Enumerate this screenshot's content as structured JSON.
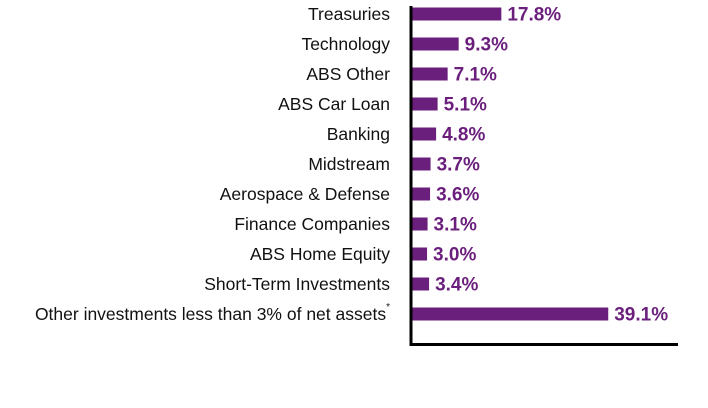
{
  "chart_data": {
    "type": "bar",
    "orientation": "horizontal",
    "categories": [
      "Treasuries",
      "Technology",
      "ABS Other",
      "ABS Car Loan",
      "Banking",
      "Midstream",
      "Aerospace & Defense",
      "Finance Companies",
      "ABS Home Equity",
      "Short-Term Investments",
      "Other investments less than 3% of net assets"
    ],
    "category_footnotes": [
      "",
      "",
      "",
      "",
      "",
      "",
      "",
      "",
      "",
      "",
      "*"
    ],
    "values": [
      17.8,
      9.3,
      7.1,
      5.1,
      4.8,
      3.7,
      3.6,
      3.1,
      3.0,
      3.4,
      39.1
    ],
    "value_labels": [
      "17.8%",
      "9.3%",
      "7.1%",
      "5.1%",
      "4.8%",
      "3.7%",
      "3.6%",
      "3.1%",
      "3.0%",
      "3.4%",
      "39.1%"
    ],
    "xlim": [
      0,
      53
    ],
    "grid": false,
    "legend": "none",
    "bar_color": "#6B1F7C",
    "label_color": "#6B1F7C"
  }
}
